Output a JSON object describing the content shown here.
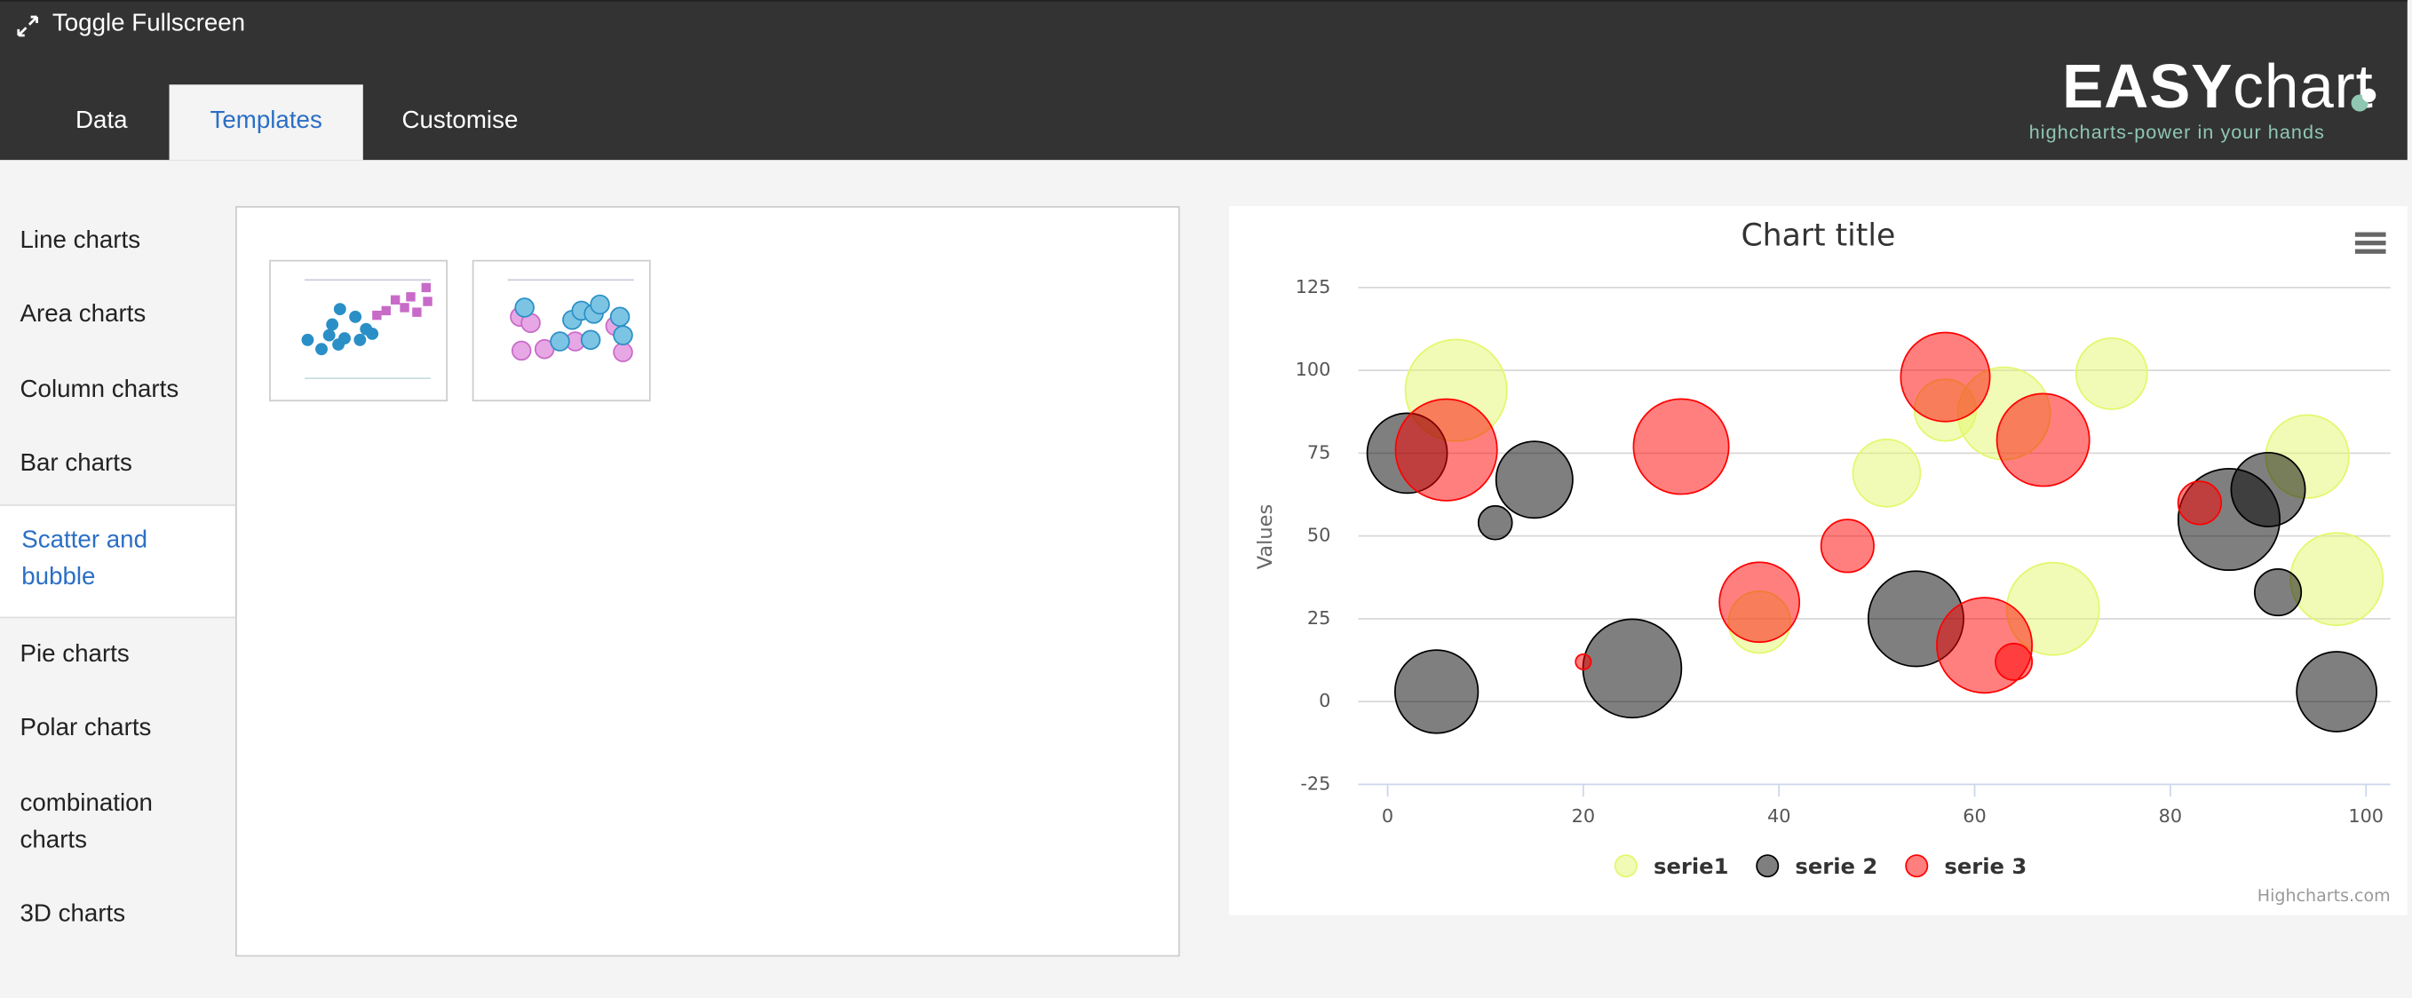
{
  "header": {
    "fullscreen": "Toggle Fullscreen",
    "tabs": [
      "Data",
      "Templates",
      "Customise"
    ],
    "logo": {
      "bold": "EASY",
      "light": "chart",
      "tagline": "highcharts-power in your hands"
    }
  },
  "sidebar": [
    "Line charts",
    "Area charts",
    "Column charts",
    "Bar charts",
    "Scatter and bubble",
    "Pie charts",
    "Polar charts",
    "combination charts",
    "3D charts"
  ],
  "chart_data": {
    "type": "bubble",
    "title": "Chart title",
    "y_label": "Values",
    "credit": "Highcharts.com",
    "xlim": [
      -3,
      102.5
    ],
    "ylim": [
      -25,
      125
    ],
    "xticks": [
      0,
      20,
      40,
      60,
      80,
      100
    ],
    "yticks": [
      -25,
      0,
      25,
      50,
      75,
      100,
      125
    ],
    "grid": true,
    "series": [
      {
        "name": "serie1",
        "color": "#e4f76c",
        "x": [
          7,
          51,
          57,
          63,
          68,
          74,
          94,
          97,
          38
        ],
        "values": [
          94,
          69,
          88,
          87,
          28,
          99,
          74,
          37,
          24
        ],
        "z": [
          100,
          44,
          37,
          83,
          83,
          49,
          67,
          83,
          37
        ]
      },
      {
        "name": "serie 2",
        "color": "#000000",
        "x": [
          2,
          11,
          15,
          5,
          25,
          54,
          86,
          90,
          91,
          97
        ],
        "values": [
          75,
          54,
          67,
          3,
          10,
          25,
          55,
          64,
          33,
          3
        ],
        "z": [
          62,
          11,
          57,
          67,
          94,
          88,
          100,
          53,
          21,
          62
        ]
      },
      {
        "name": "serie 3",
        "color": "#ff0000",
        "x": [
          6,
          30,
          20,
          38,
          47,
          57,
          67,
          61,
          64,
          83
        ],
        "values": [
          76,
          77,
          12,
          30,
          47,
          98,
          79,
          17,
          12,
          60
        ],
        "z": [
          100,
          88,
          2.3,
          62,
          27,
          77,
          83,
          88,
          13,
          18
        ]
      }
    ]
  }
}
